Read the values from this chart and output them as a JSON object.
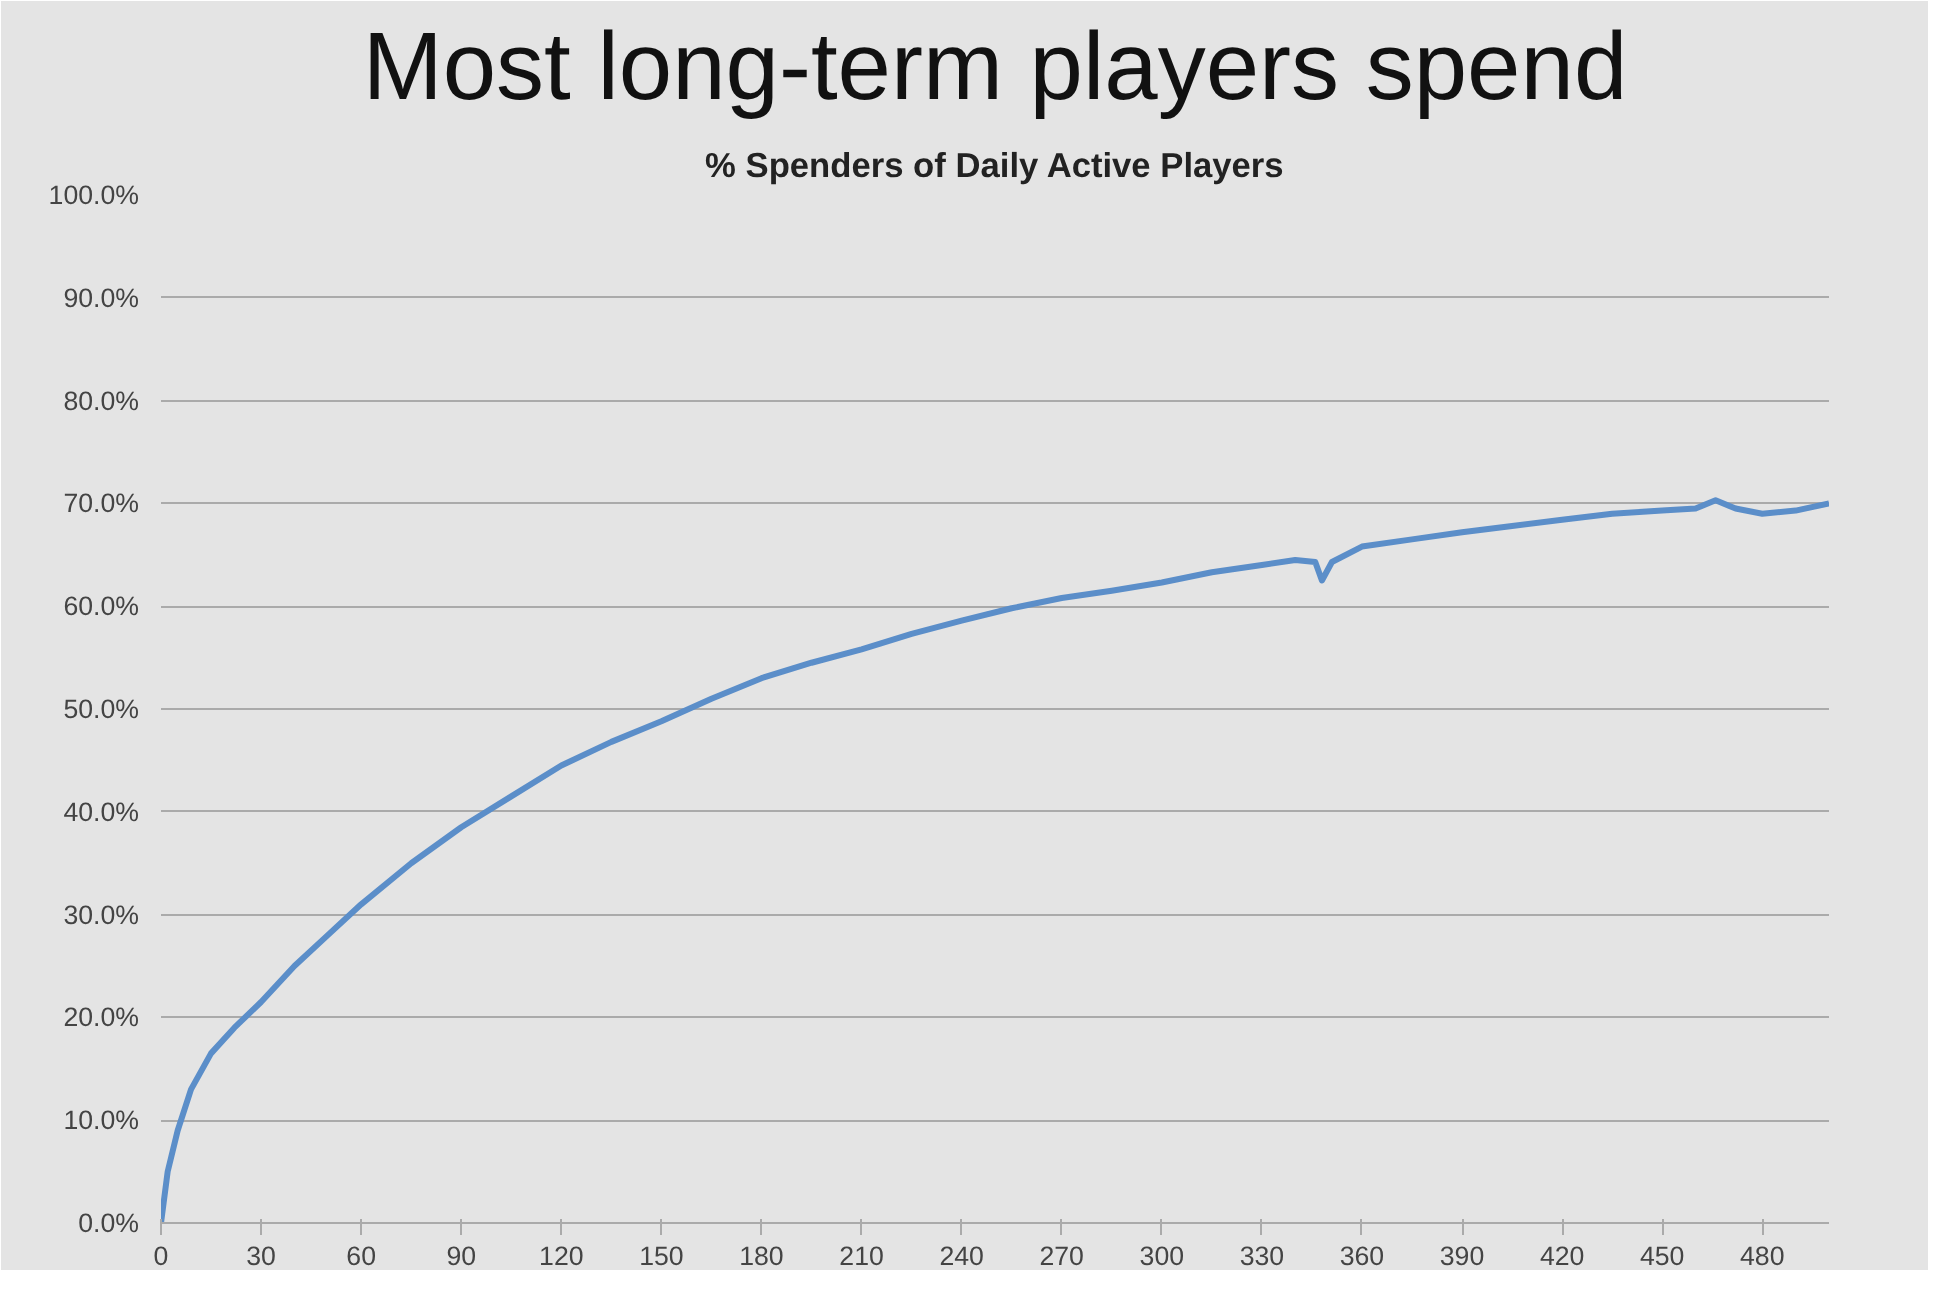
{
  "chart_data": {
    "type": "line",
    "title": "Most long-term players spend",
    "subtitle": "% Spenders of Daily Active Players",
    "x": [
      0,
      2,
      5,
      9,
      15,
      22,
      30,
      40,
      50,
      60,
      75,
      90,
      105,
      120,
      135,
      150,
      165,
      180,
      195,
      210,
      225,
      240,
      255,
      270,
      285,
      300,
      315,
      330,
      340,
      346,
      348,
      351,
      360,
      375,
      390,
      405,
      420,
      435,
      450,
      460,
      466,
      472,
      480,
      490,
      500
    ],
    "series": [
      {
        "color": "#5b8ec9",
        "values": [
          0,
          5,
          9,
          13,
          16.5,
          19,
          21.5,
          25,
          28,
          31,
          35,
          38.5,
          41.5,
          44.5,
          46.8,
          48.8,
          51,
          53,
          54.5,
          55.8,
          57.3,
          58.6,
          59.8,
          60.8,
          61.5,
          62.3,
          63.3,
          64,
          64.5,
          64.3,
          62.5,
          64.3,
          65.8,
          66.5,
          67.2,
          67.8,
          68.4,
          69,
          69.3,
          69.5,
          70.3,
          69.5,
          69,
          69.3,
          70
        ]
      }
    ],
    "xlim": [
      0,
      500
    ],
    "ylim": [
      0,
      100
    ],
    "xticks": [
      0,
      30,
      60,
      90,
      120,
      150,
      180,
      210,
      240,
      270,
      300,
      330,
      360,
      390,
      420,
      450,
      480
    ],
    "yticks": [
      {
        "value": 0,
        "label": "0.0%"
      },
      {
        "value": 10,
        "label": "10.0%"
      },
      {
        "value": 20,
        "label": "20.0%"
      },
      {
        "value": 30,
        "label": "30.0%"
      },
      {
        "value": 40,
        "label": "40.0%"
      },
      {
        "value": 50,
        "label": "50.0%"
      },
      {
        "value": 60,
        "label": "60.0%"
      },
      {
        "value": 70,
        "label": "70.0%"
      },
      {
        "value": 80,
        "label": "80.0%"
      },
      {
        "value": 90,
        "label": "90.0%"
      },
      {
        "value": 100,
        "label": "100.0%"
      }
    ],
    "grid": "y",
    "marker": "none",
    "line_style": "solid"
  }
}
